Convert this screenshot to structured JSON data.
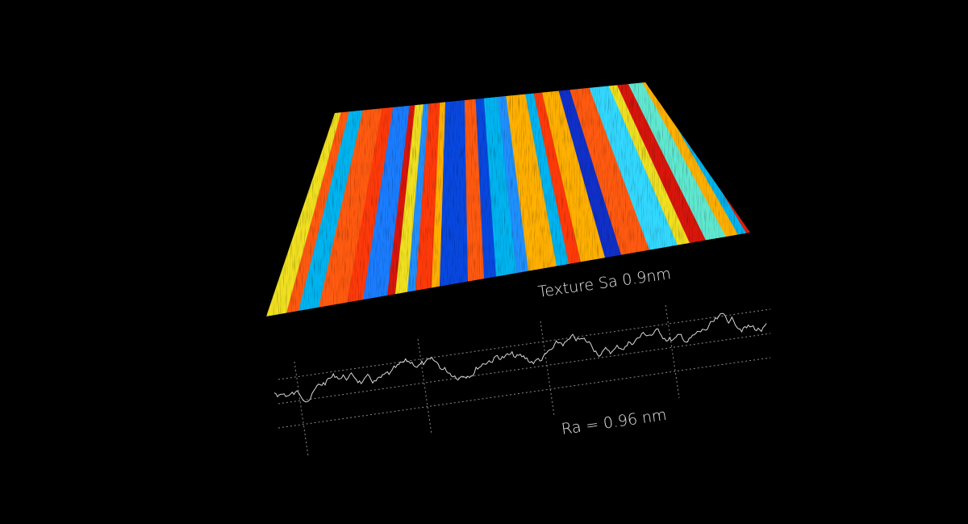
{
  "surface_label": "Texture Sa 0.9nm",
  "profile_label": "Ra = 0.96 nm"
}
